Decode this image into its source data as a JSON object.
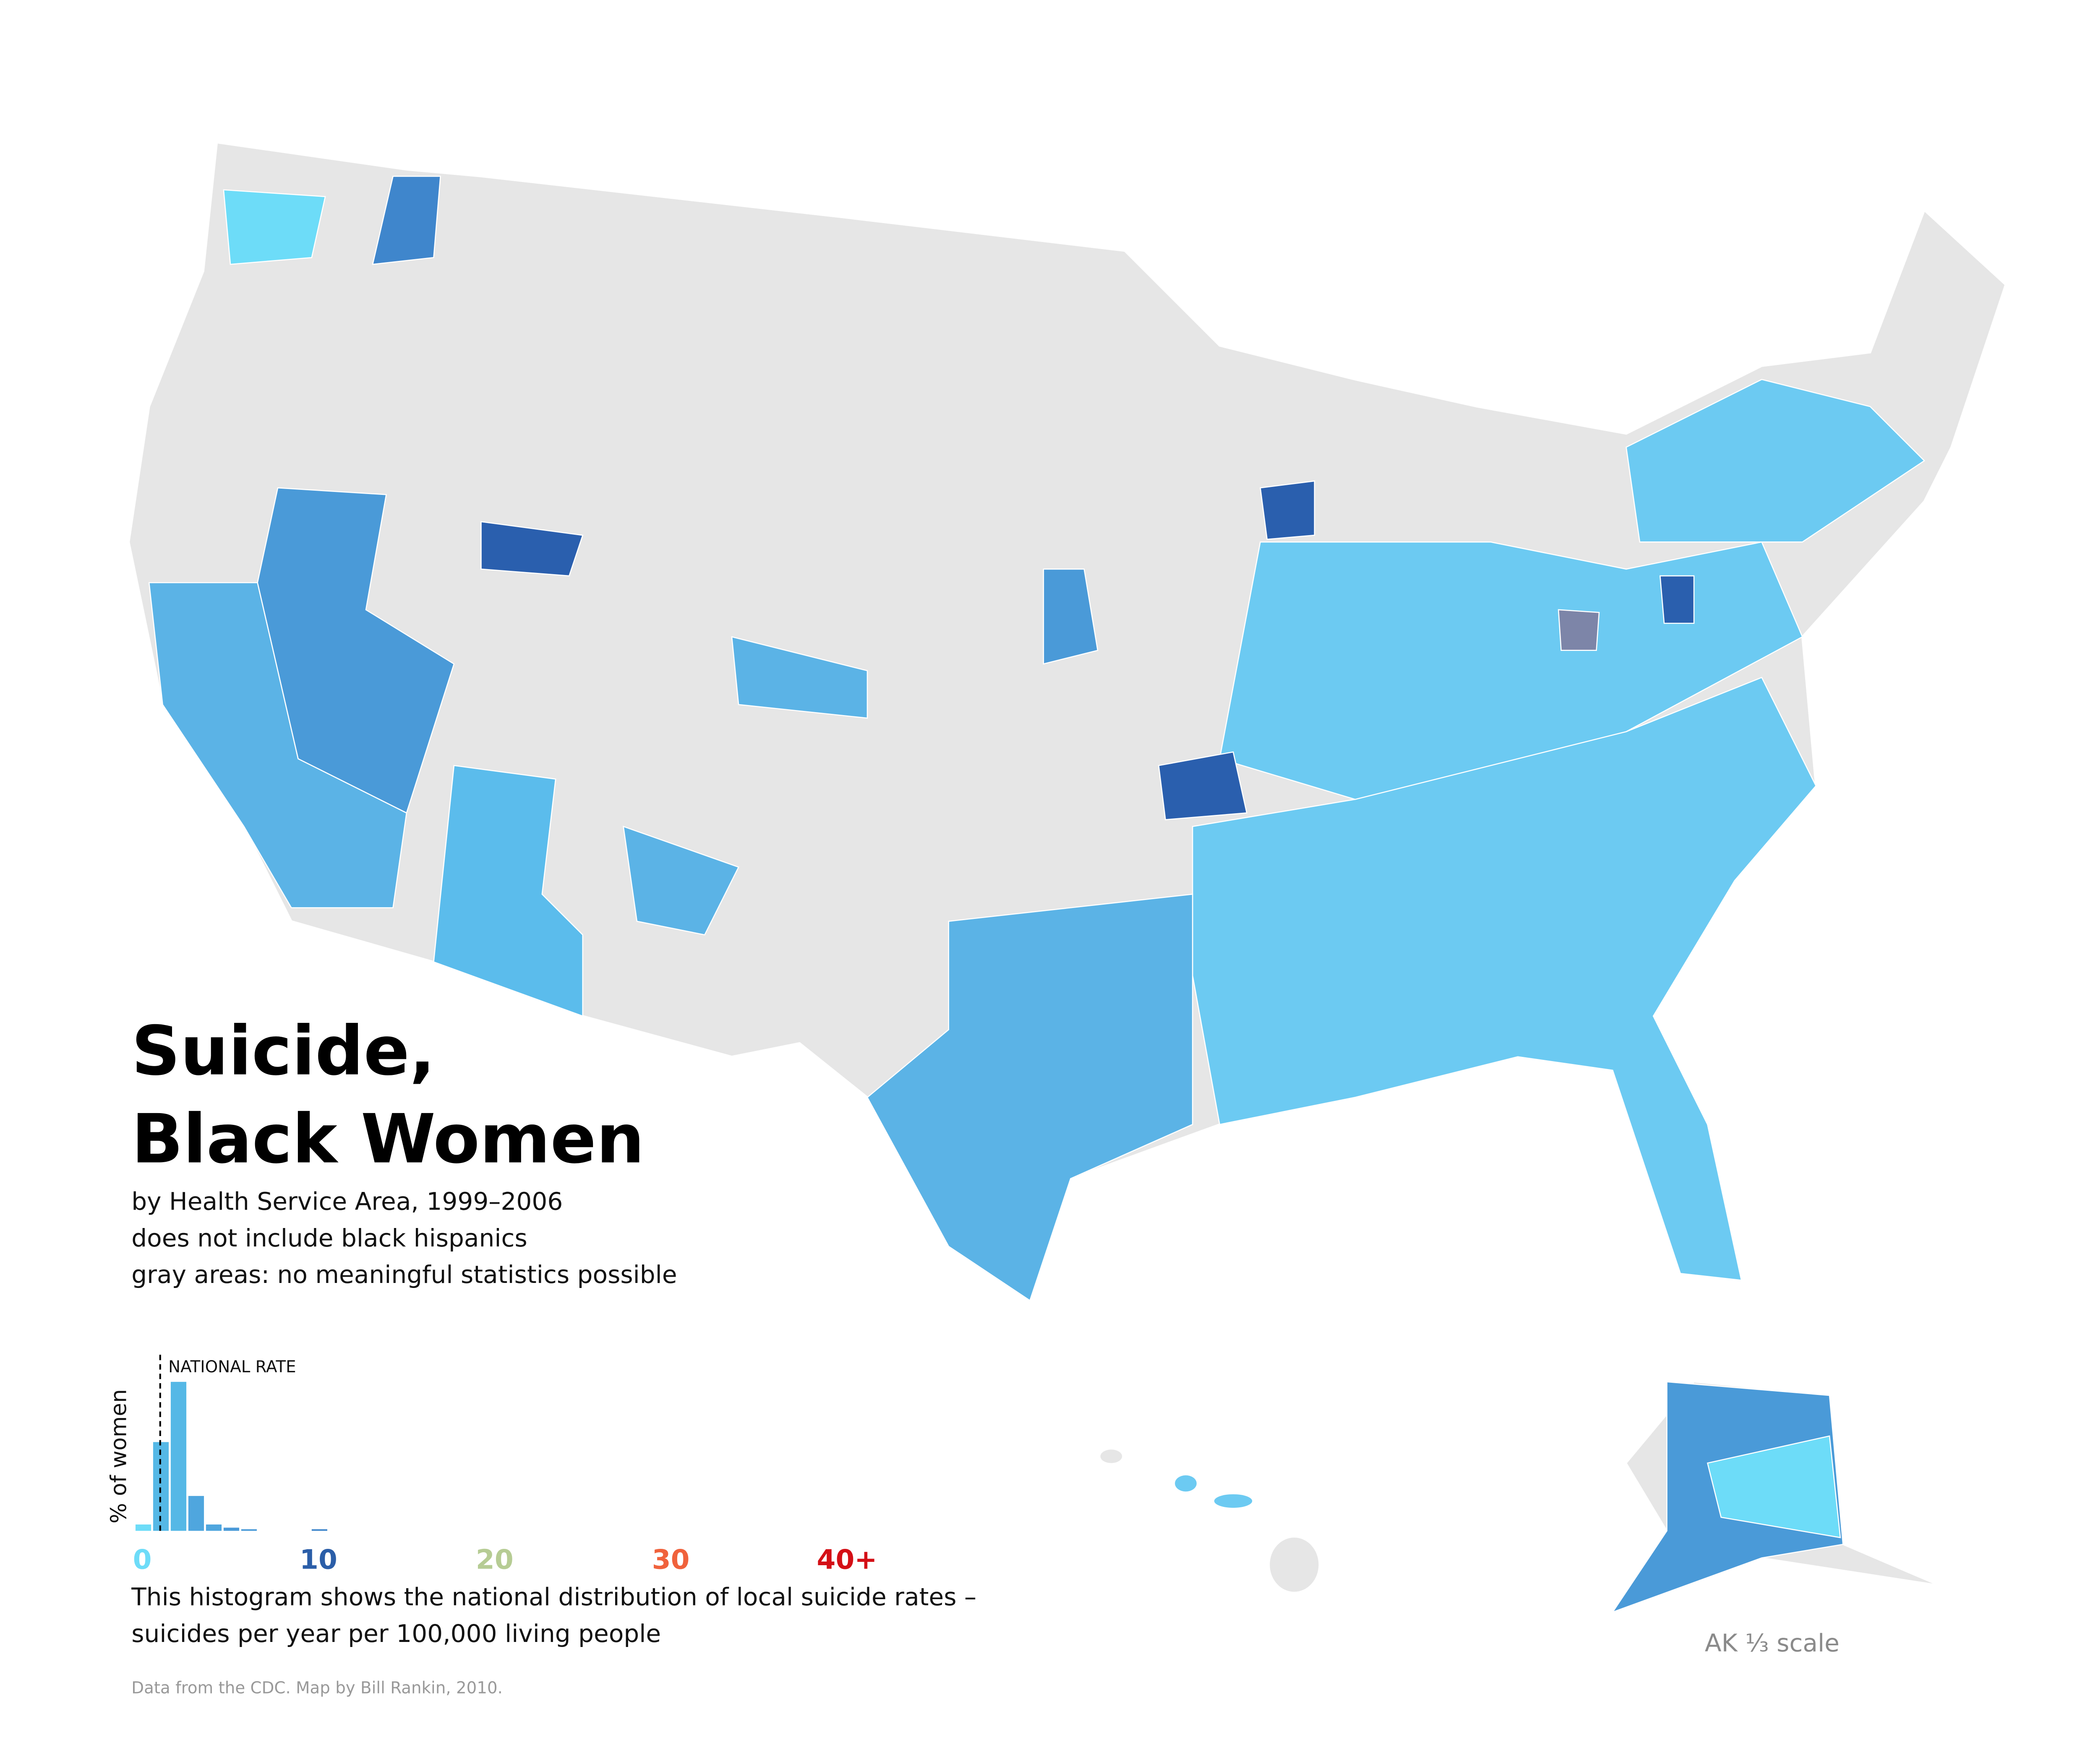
{
  "map": {
    "title_lines": [
      "Suicide,",
      "Black Women"
    ],
    "subtitle_lines": [
      "by Health Service Area, 1999–2006",
      "does not include black hispanics",
      "gray areas: no meaningful statistics possible"
    ],
    "inset_label": "AK ⅓ scale"
  },
  "chart_data": {
    "type": "histogram",
    "ylabel": "% of women",
    "bins": [
      0,
      1,
      2,
      3,
      4,
      5,
      6,
      7,
      8,
      9,
      10,
      11
    ],
    "values": [
      2,
      28,
      47,
      11,
      2,
      1,
      0.5,
      0,
      0,
      0,
      0.5
    ],
    "colors": [
      "#6ddcf8",
      "#55b8e6",
      "#55b8e6",
      "#4fa6de",
      "#4fa6de",
      "#4a9ad8",
      "#4a9ad8",
      "#4a9ad8",
      "#4a9ad8",
      "#4a9ad8",
      "#3f86cc"
    ],
    "xlim": [
      0,
      40
    ],
    "ylim": [
      0,
      50
    ],
    "xticks": [
      0,
      10,
      20,
      30,
      {
        "value": 40,
        "label": "40+"
      }
    ],
    "xtick_colors": [
      "#6ddcf8",
      "#2b5ea8",
      "#b6cc94",
      "#f0623c",
      "#d40f16"
    ],
    "annotation": {
      "text": "NATIONAL RATE",
      "x": 1.4
    },
    "caption_lines": [
      "This histogram shows the national distribution of local suicide rates –",
      "suicides per year per 100,000 living people"
    ],
    "source": "Data from the CDC. Map by Bill Rankin, 2010."
  }
}
